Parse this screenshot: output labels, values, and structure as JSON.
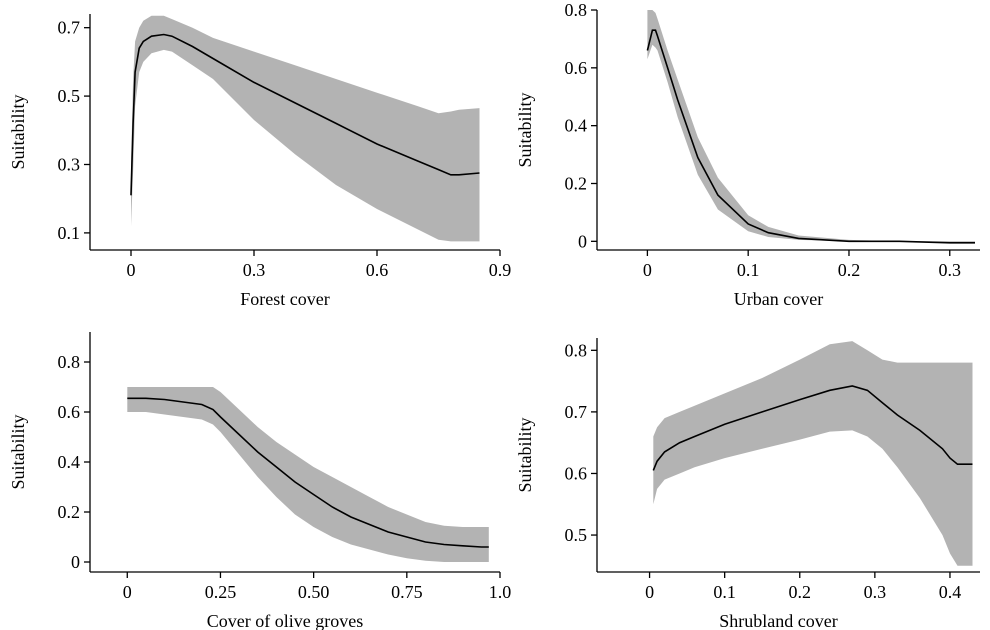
{
  "chart_data": [
    {
      "type": "area",
      "xlabel": "Forest cover",
      "ylabel": "Suitability",
      "xlim": [
        -0.1,
        0.9
      ],
      "ylim": [
        0.05,
        0.74
      ],
      "xticks": [
        0,
        0.3,
        0.6,
        0.9
      ],
      "xtick_labels": [
        "0",
        "0.3",
        "0.6",
        "0.9"
      ],
      "yticks": [
        0.1,
        0.3,
        0.5,
        0.7
      ],
      "ytick_labels": [
        "0.1",
        "0.3",
        "0.5",
        "0.7"
      ],
      "grid": false,
      "series": [
        {
          "x": [
            0.0,
            0.005,
            0.01,
            0.02,
            0.03,
            0.05,
            0.08,
            0.1,
            0.15,
            0.2,
            0.3,
            0.4,
            0.5,
            0.6,
            0.7,
            0.75,
            0.78,
            0.8,
            0.85
          ],
          "y": [
            0.21,
            0.42,
            0.57,
            0.64,
            0.66,
            0.675,
            0.68,
            0.675,
            0.645,
            0.61,
            0.54,
            0.48,
            0.42,
            0.36,
            0.31,
            0.285,
            0.27,
            0.27,
            0.275
          ],
          "lower": [
            0.12,
            0.28,
            0.47,
            0.57,
            0.6,
            0.625,
            0.635,
            0.63,
            0.59,
            0.55,
            0.43,
            0.33,
            0.24,
            0.17,
            0.11,
            0.08,
            0.075,
            0.075,
            0.075
          ],
          "upper": [
            0.3,
            0.55,
            0.66,
            0.7,
            0.72,
            0.735,
            0.735,
            0.725,
            0.7,
            0.67,
            0.63,
            0.59,
            0.55,
            0.51,
            0.47,
            0.45,
            0.455,
            0.46,
            0.465
          ]
        }
      ]
    },
    {
      "type": "area",
      "xlabel": "Urban cover",
      "ylabel": "Suitability",
      "xlim": [
        -0.05,
        0.33
      ],
      "ylim": [
        -0.03,
        0.8
      ],
      "xticks": [
        0,
        0.1,
        0.2,
        0.3
      ],
      "xtick_labels": [
        "0",
        "0.1",
        "0.2",
        "0.3"
      ],
      "yticks": [
        0,
        0.2,
        0.4,
        0.6,
        0.8
      ],
      "ytick_labels": [
        "0",
        "0.2",
        "0.4",
        "0.6",
        "0.8"
      ],
      "grid": false,
      "series": [
        {
          "x": [
            0.0,
            0.005,
            0.008,
            0.01,
            0.02,
            0.03,
            0.05,
            0.07,
            0.1,
            0.12,
            0.15,
            0.2,
            0.25,
            0.3,
            0.325
          ],
          "y": [
            0.66,
            0.73,
            0.73,
            0.71,
            0.6,
            0.49,
            0.29,
            0.16,
            0.06,
            0.03,
            0.01,
            0.0,
            0.0,
            -0.005,
            -0.005
          ],
          "lower": [
            0.63,
            0.68,
            0.67,
            0.66,
            0.55,
            0.43,
            0.23,
            0.11,
            0.035,
            0.015,
            0.005,
            0.0,
            0.0,
            -0.005,
            -0.005
          ],
          "upper": [
            0.8,
            0.8,
            0.79,
            0.77,
            0.66,
            0.56,
            0.36,
            0.22,
            0.09,
            0.05,
            0.02,
            0.005,
            0.0,
            0.0,
            0.0
          ]
        }
      ]
    },
    {
      "type": "area",
      "xlabel": "Cover of olive groves",
      "ylabel": "Suitability",
      "xlim": [
        -0.1,
        1.0
      ],
      "ylim": [
        -0.04,
        0.92
      ],
      "xticks": [
        0,
        0.25,
        0.5,
        0.75,
        1.0
      ],
      "xtick_labels": [
        "0",
        "0.25",
        "0.50",
        "0.75",
        "1.0"
      ],
      "yticks": [
        0,
        0.2,
        0.4,
        0.6,
        0.8
      ],
      "ytick_labels": [
        "0",
        "0.2",
        "0.4",
        "0.6",
        "0.8"
      ],
      "grid": false,
      "series": [
        {
          "x": [
            0.0,
            0.05,
            0.1,
            0.15,
            0.2,
            0.23,
            0.25,
            0.3,
            0.35,
            0.4,
            0.45,
            0.5,
            0.55,
            0.6,
            0.65,
            0.7,
            0.75,
            0.8,
            0.85,
            0.9,
            0.95,
            0.97
          ],
          "y": [
            0.655,
            0.655,
            0.65,
            0.64,
            0.63,
            0.61,
            0.58,
            0.51,
            0.44,
            0.38,
            0.32,
            0.27,
            0.22,
            0.18,
            0.15,
            0.12,
            0.1,
            0.08,
            0.07,
            0.065,
            0.06,
            0.06
          ],
          "lower": [
            0.6,
            0.6,
            0.59,
            0.58,
            0.57,
            0.55,
            0.52,
            0.43,
            0.34,
            0.26,
            0.19,
            0.14,
            0.1,
            0.07,
            0.05,
            0.03,
            0.015,
            0.005,
            0.0,
            0.0,
            0.0,
            0.0
          ],
          "upper": [
            0.7,
            0.7,
            0.7,
            0.7,
            0.7,
            0.7,
            0.68,
            0.61,
            0.54,
            0.48,
            0.43,
            0.38,
            0.34,
            0.3,
            0.26,
            0.22,
            0.19,
            0.16,
            0.145,
            0.14,
            0.14,
            0.14
          ]
        }
      ]
    },
    {
      "type": "area",
      "xlabel": "Shrubland cover",
      "ylabel": "Suitability",
      "xlim": [
        -0.07,
        0.44
      ],
      "ylim": [
        0.44,
        0.82
      ],
      "xticks": [
        0,
        0.1,
        0.2,
        0.3,
        0.4
      ],
      "xtick_labels": [
        "0",
        "0.1",
        "0.2",
        "0.3",
        "0.4"
      ],
      "yticks": [
        0.5,
        0.6,
        0.7,
        0.8
      ],
      "ytick_labels": [
        "0.5",
        "0.6",
        "0.7",
        "0.8"
      ],
      "grid": false,
      "series": [
        {
          "x": [
            0.005,
            0.01,
            0.02,
            0.04,
            0.06,
            0.1,
            0.15,
            0.2,
            0.24,
            0.27,
            0.29,
            0.31,
            0.33,
            0.36,
            0.39,
            0.4,
            0.41,
            0.43
          ],
          "y": [
            0.605,
            0.62,
            0.635,
            0.65,
            0.66,
            0.68,
            0.7,
            0.72,
            0.735,
            0.742,
            0.735,
            0.715,
            0.695,
            0.67,
            0.64,
            0.625,
            0.615,
            0.615
          ],
          "lower": [
            0.55,
            0.575,
            0.59,
            0.6,
            0.61,
            0.625,
            0.64,
            0.655,
            0.668,
            0.67,
            0.66,
            0.64,
            0.61,
            0.56,
            0.5,
            0.47,
            0.45,
            0.45
          ],
          "upper": [
            0.66,
            0.675,
            0.69,
            0.7,
            0.71,
            0.73,
            0.755,
            0.785,
            0.81,
            0.815,
            0.8,
            0.785,
            0.78,
            0.78,
            0.78,
            0.78,
            0.78,
            0.78
          ]
        }
      ]
    }
  ]
}
